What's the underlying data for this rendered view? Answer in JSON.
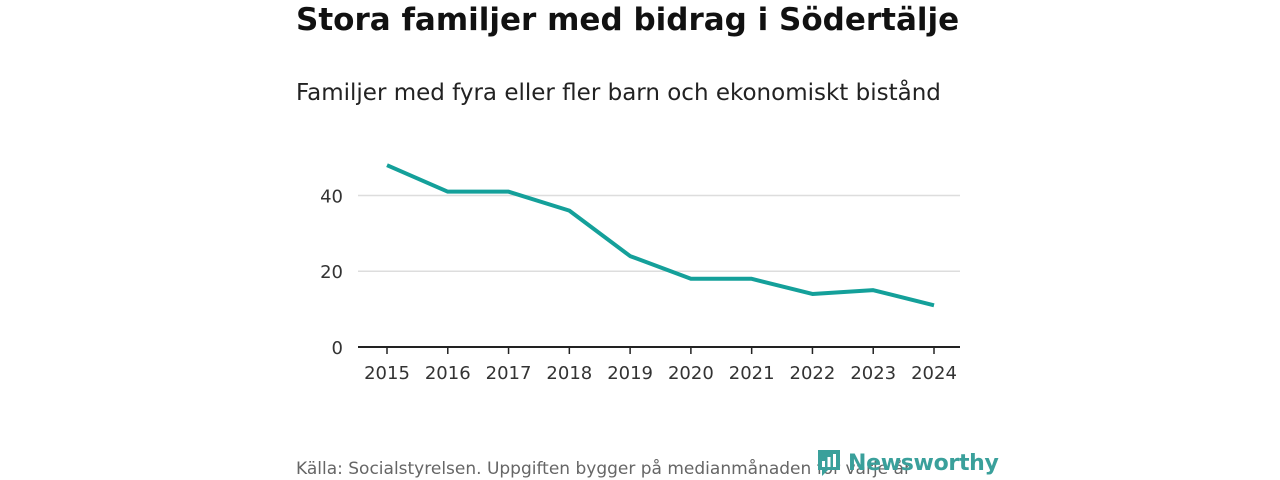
{
  "title": "Stora familjer med bidrag i Södertälje",
  "subtitle": "Familjer med fyra eller fler barn och ekonomiskt bistånd",
  "source": "Källa: Socialstyrelsen. Uppgiften bygger på medianmånaden för varje år",
  "brand": {
    "name": "Newsworthy"
  },
  "colors": {
    "line": "#14a09a",
    "grid": "#dddddd",
    "axis": "#222222",
    "brand": "#3aa09b"
  },
  "chart_data": {
    "type": "line",
    "title": "Stora familjer med bidrag i Södertälje",
    "subtitle": "Familjer med fyra eller fler barn och ekonomiskt bistånd",
    "xlabel": "",
    "ylabel": "",
    "categories": [
      "2015",
      "2016",
      "2017",
      "2018",
      "2019",
      "2020",
      "2021",
      "2022",
      "2023",
      "2024"
    ],
    "series": [
      {
        "name": "Familjer",
        "values": [
          48,
          41,
          41,
          36,
          24,
          18,
          18,
          14,
          15,
          11
        ]
      }
    ],
    "yticks": [
      0,
      20,
      40
    ],
    "ylim": [
      0,
      52
    ],
    "grid": true,
    "legend": "none"
  }
}
